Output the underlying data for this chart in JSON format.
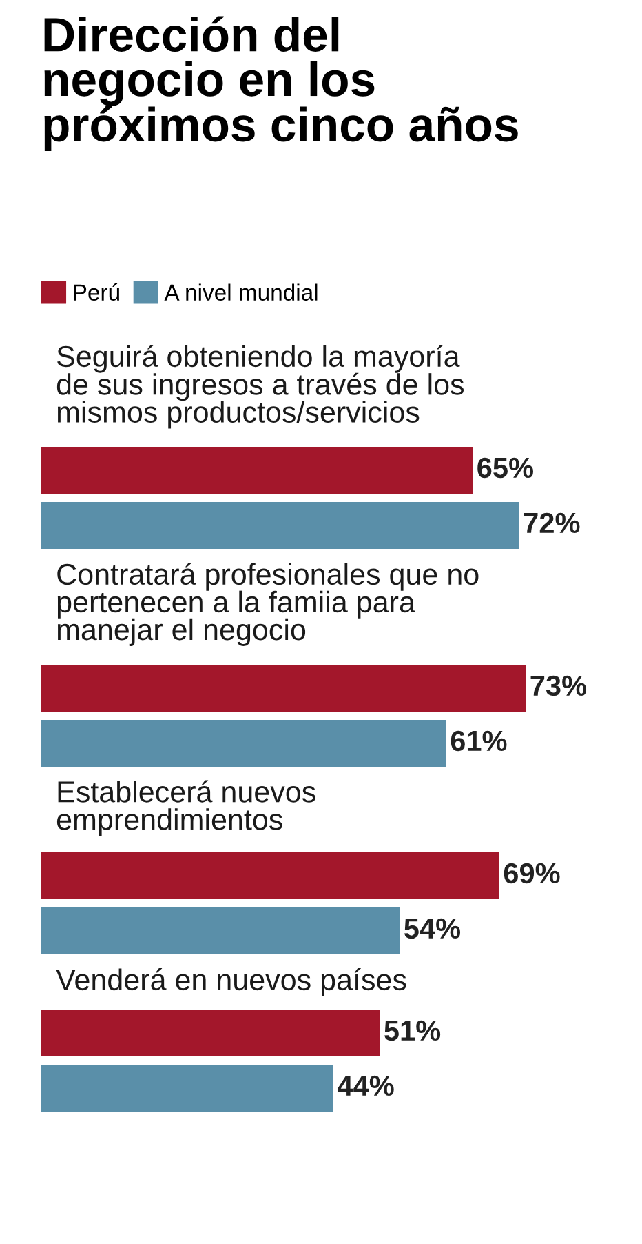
{
  "chart_data": {
    "type": "bar",
    "orientation": "horizontal",
    "title": "Dirección del\nnegocio en los\npróximos cinco años",
    "categories": [
      "Seguirá obteniendo la mayoría\nde sus ingresos a través de los\nmismos productos/servicios",
      "Contratará profesionales que no\npertenecen a la famiia para\nmanejar el negocio",
      "Establecerá nuevos\nemprendimientos",
      "Venderá en nuevos países"
    ],
    "series": [
      {
        "name": "Perú",
        "color": "#a3172b",
        "values": [
          65,
          73,
          69,
          51
        ],
        "value_labels": [
          "65%",
          "73%",
          "69%",
          "51%"
        ]
      },
      {
        "name": "A nivel mundial",
        "color": "#5a8fa9",
        "values": [
          72,
          61,
          54,
          44
        ],
        "value_labels": [
          "72%",
          "61%",
          "54%",
          "44%"
        ]
      }
    ],
    "legend": "top left"
  }
}
